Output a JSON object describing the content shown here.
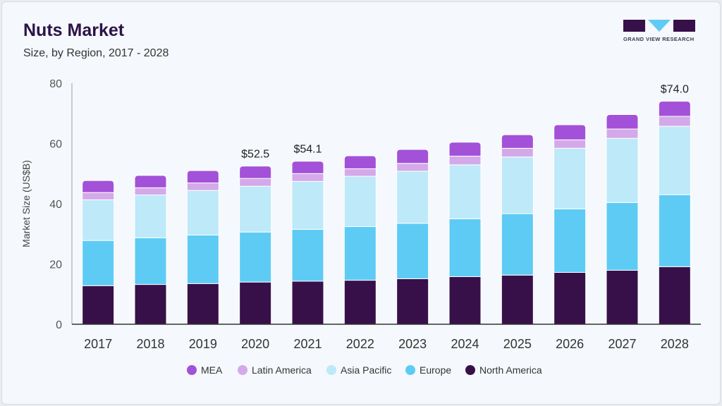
{
  "header": {
    "title": "Nuts Market",
    "subtitle": "Size, by Region, 2017 - 2028"
  },
  "logo": {
    "text": "GRAND VIEW RESEARCH"
  },
  "chart_data": {
    "type": "bar",
    "stacked": true,
    "ylabel": "Market Size (US$B)",
    "ylim": [
      0,
      80
    ],
    "yticks": [
      0,
      20,
      40,
      60,
      80
    ],
    "grid": false,
    "legend_position": "bottom",
    "categories": [
      "2017",
      "2018",
      "2019",
      "2020",
      "2021",
      "2022",
      "2023",
      "2024",
      "2025",
      "2026",
      "2027",
      "2028"
    ],
    "series": [
      {
        "name": "North America",
        "color": "#37104a",
        "values": [
          12.8,
          13.2,
          13.5,
          14.0,
          14.3,
          14.6,
          15.1,
          15.8,
          16.3,
          17.2,
          17.9,
          19.1
        ]
      },
      {
        "name": "Europe",
        "color": "#5ecbf5",
        "values": [
          15.0,
          15.5,
          16.1,
          16.6,
          17.2,
          17.8,
          18.4,
          19.2,
          20.4,
          21.1,
          22.5,
          23.9
        ]
      },
      {
        "name": "Asia Pacific",
        "color": "#bde9f9",
        "values": [
          13.5,
          14.2,
          14.8,
          15.2,
          15.9,
          16.7,
          17.3,
          17.9,
          18.8,
          20.1,
          21.3,
          22.7
        ]
      },
      {
        "name": "Latin America",
        "color": "#d4a9ea",
        "values": [
          2.4,
          2.4,
          2.5,
          2.6,
          2.6,
          2.5,
          2.6,
          2.9,
          2.9,
          2.8,
          3.1,
          3.3
        ]
      },
      {
        "name": "MEA",
        "color": "#a351d8",
        "values": [
          4.0,
          4.1,
          4.1,
          4.1,
          4.1,
          4.3,
          4.6,
          4.6,
          4.5,
          5.0,
          4.8,
          5.0
        ]
      }
    ],
    "annotations": [
      {
        "category": "2020",
        "label": "$52.5"
      },
      {
        "category": "2021",
        "label": "$54.1"
      },
      {
        "category": "2028",
        "label": "$74.0"
      }
    ],
    "legend_order": [
      "MEA",
      "Latin America",
      "Asia Pacific",
      "Europe",
      "North America"
    ]
  }
}
